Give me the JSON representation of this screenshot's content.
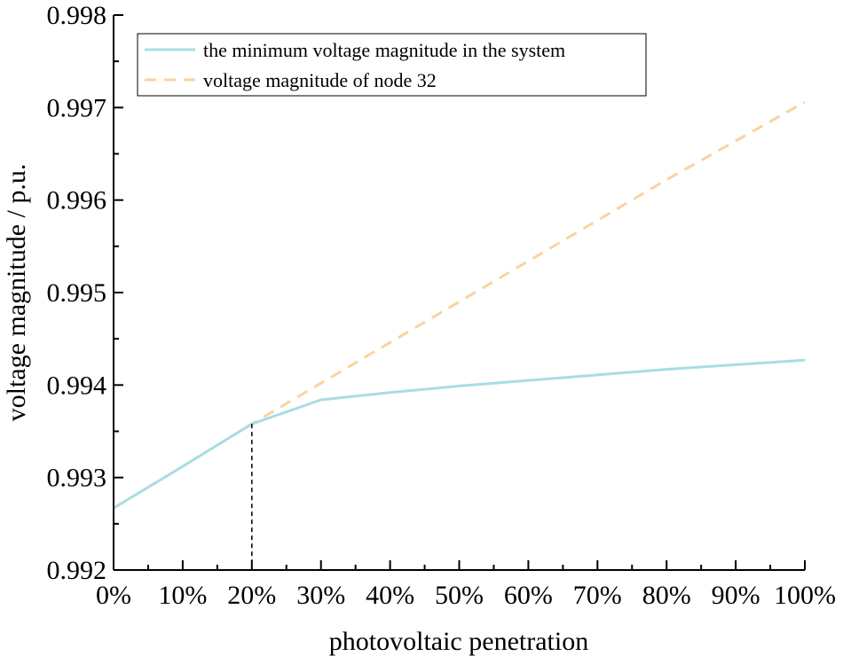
{
  "chart_data": {
    "type": "line",
    "title": "",
    "xlabel": "photovoltaic penetration",
    "ylabel": "voltage magnitude / p.u.",
    "x": [
      0,
      10,
      20,
      30,
      40,
      50,
      60,
      70,
      80,
      90,
      100
    ],
    "x_tick_labels": [
      "0%",
      "10%",
      "20%",
      "30%",
      "40%",
      "50%",
      "60%",
      "70%",
      "80%",
      "90%",
      "100%"
    ],
    "xlim": [
      0,
      100
    ],
    "ylim": [
      0.992,
      0.998
    ],
    "y_ticks": [
      0.992,
      0.993,
      0.994,
      0.995,
      0.996,
      0.997,
      0.998
    ],
    "y_tick_labels": [
      "0.992",
      "0.993",
      "0.994",
      "0.995",
      "0.996",
      "0.997",
      "0.998"
    ],
    "grid": false,
    "legend_position": "top-left",
    "series": [
      {
        "name": "the minimum voltage magnitude in the system",
        "style": "solid",
        "color": "#a8dde3",
        "x": [
          0,
          10,
          20,
          30,
          40,
          50,
          60,
          70,
          80,
          90,
          100
        ],
        "values": [
          0.99267,
          0.99312,
          0.99358,
          0.99384,
          0.99392,
          0.99399,
          0.99405,
          0.99411,
          0.99417,
          0.99422,
          0.99427
        ]
      },
      {
        "name": "voltage magnitude of node 32",
        "style": "dashed",
        "color": "#fbd39e",
        "x": [
          0,
          10,
          20,
          30,
          40,
          50,
          60,
          70,
          80,
          90,
          100
        ],
        "values": [
          0.99267,
          0.99312,
          0.99358,
          0.99402,
          0.99446,
          0.9949,
          0.99534,
          0.99578,
          0.99622,
          0.99664,
          0.99706
        ]
      }
    ],
    "annotations": [
      {
        "type": "vertical-dashed-line",
        "x": 20,
        "y_to": 0.99358,
        "color": "#000000"
      }
    ]
  }
}
